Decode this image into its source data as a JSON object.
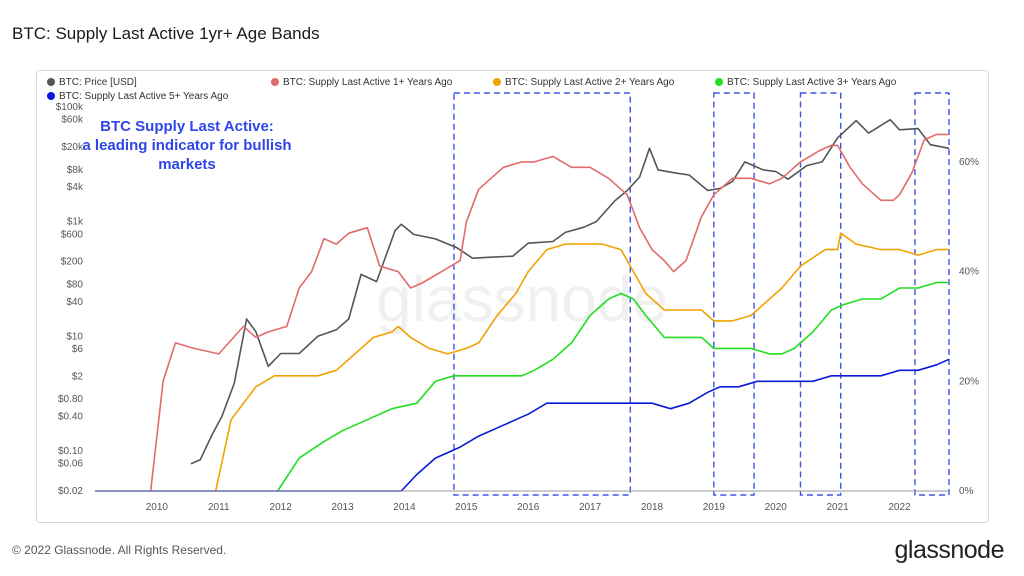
{
  "title": "BTC: Supply Last Active 1yr+ Age Bands",
  "footer": "© 2022 Glassnode. All Rights Reserved.",
  "brand": "glassnode",
  "watermark": "glassnode",
  "annotation": [
    "BTC Supply Last Active:",
    "a leading indicator for bullish",
    "markets"
  ],
  "chart_data": {
    "type": "line",
    "title": "BTC: Supply Last Active 1yr+ Age Bands",
    "xlim": [
      2009.0,
      2022.8
    ],
    "x_ticks": [
      "2010",
      "2011",
      "2012",
      "2013",
      "2014",
      "2015",
      "2016",
      "2017",
      "2018",
      "2019",
      "2020",
      "2021",
      "2022"
    ],
    "y_left": {
      "scale": "log",
      "ticks": [
        "$100k",
        "$60k",
        "$20k",
        "$8k",
        "$4k",
        "$1k",
        "$600",
        "$200",
        "$80",
        "$40",
        "$10",
        "$6",
        "$2",
        "$0.80",
        "$0.40",
        "$0.10",
        "$0.06",
        "$0.02"
      ],
      "tick_values": [
        100000,
        60000,
        20000,
        8000,
        4000,
        1000,
        600,
        200,
        80,
        40,
        10,
        6,
        2,
        0.8,
        0.4,
        0.1,
        0.06,
        0.02
      ],
      "ylim": [
        0.02,
        100000
      ]
    },
    "y_right": {
      "scale": "linear",
      "ticks": [
        "0%",
        "20%",
        "40%",
        "60%"
      ],
      "tick_values": [
        0,
        20,
        40,
        60
      ],
      "ylim": [
        0,
        70
      ]
    },
    "legend_placement": "top-left",
    "series": [
      {
        "name": "BTC: Price [USD]",
        "color": "#555555",
        "axis": "left",
        "points": [
          [
            2010.55,
            0.06
          ],
          [
            2010.7,
            0.07
          ],
          [
            2010.9,
            0.2
          ],
          [
            2011.05,
            0.4
          ],
          [
            2011.25,
            1.5
          ],
          [
            2011.45,
            20
          ],
          [
            2011.6,
            12
          ],
          [
            2011.8,
            3
          ],
          [
            2012.0,
            5
          ],
          [
            2012.3,
            5
          ],
          [
            2012.6,
            10
          ],
          [
            2012.9,
            13
          ],
          [
            2013.1,
            20
          ],
          [
            2013.3,
            120
          ],
          [
            2013.55,
            90
          ],
          [
            2013.85,
            700
          ],
          [
            2013.95,
            900
          ],
          [
            2014.15,
            600
          ],
          [
            2014.5,
            500
          ],
          [
            2014.85,
            350
          ],
          [
            2015.1,
            230
          ],
          [
            2015.4,
            240
          ],
          [
            2015.75,
            250
          ],
          [
            2016.0,
            420
          ],
          [
            2016.4,
            450
          ],
          [
            2016.6,
            650
          ],
          [
            2016.9,
            800
          ],
          [
            2017.1,
            1000
          ],
          [
            2017.4,
            2300
          ],
          [
            2017.6,
            3500
          ],
          [
            2017.8,
            6000
          ],
          [
            2017.96,
            19000
          ],
          [
            2018.1,
            8000
          ],
          [
            2018.4,
            7000
          ],
          [
            2018.6,
            6500
          ],
          [
            2018.9,
            3500
          ],
          [
            2019.1,
            3800
          ],
          [
            2019.3,
            5000
          ],
          [
            2019.5,
            11000
          ],
          [
            2019.8,
            8000
          ],
          [
            2020.0,
            7500
          ],
          [
            2020.2,
            5500
          ],
          [
            2020.5,
            9500
          ],
          [
            2020.75,
            11000
          ],
          [
            2021.0,
            29000
          ],
          [
            2021.3,
            58000
          ],
          [
            2021.5,
            35000
          ],
          [
            2021.85,
            60000
          ],
          [
            2022.0,
            40000
          ],
          [
            2022.3,
            42000
          ],
          [
            2022.5,
            22000
          ],
          [
            2022.8,
            19000
          ]
        ]
      },
      {
        "name": "BTC: Supply Last Active 1+ Years Ago",
        "color": "#e26b6b",
        "axis": "right",
        "points": [
          [
            2009.9,
            0
          ],
          [
            2010.1,
            20
          ],
          [
            2010.3,
            27
          ],
          [
            2010.6,
            26
          ],
          [
            2011.0,
            25
          ],
          [
            2011.4,
            30
          ],
          [
            2011.6,
            28
          ],
          [
            2011.8,
            29
          ],
          [
            2012.1,
            30
          ],
          [
            2012.3,
            37
          ],
          [
            2012.5,
            40
          ],
          [
            2012.7,
            46
          ],
          [
            2012.9,
            45
          ],
          [
            2013.1,
            47
          ],
          [
            2013.4,
            48
          ],
          [
            2013.6,
            41
          ],
          [
            2013.9,
            40
          ],
          [
            2014.1,
            37
          ],
          [
            2014.3,
            38
          ],
          [
            2014.6,
            40
          ],
          [
            2014.9,
            42
          ],
          [
            2015.0,
            49
          ],
          [
            2015.2,
            55
          ],
          [
            2015.6,
            59
          ],
          [
            2015.9,
            60
          ],
          [
            2016.1,
            60
          ],
          [
            2016.4,
            61
          ],
          [
            2016.7,
            59
          ],
          [
            2017.0,
            59
          ],
          [
            2017.3,
            57
          ],
          [
            2017.6,
            54
          ],
          [
            2017.8,
            48
          ],
          [
            2018.0,
            44
          ],
          [
            2018.2,
            42
          ],
          [
            2018.35,
            40
          ],
          [
            2018.55,
            42
          ],
          [
            2018.8,
            50
          ],
          [
            2019.0,
            54
          ],
          [
            2019.3,
            57
          ],
          [
            2019.6,
            57
          ],
          [
            2019.9,
            56
          ],
          [
            2020.1,
            57
          ],
          [
            2020.4,
            60
          ],
          [
            2020.7,
            62
          ],
          [
            2020.9,
            63
          ],
          [
            2021.0,
            63
          ],
          [
            2021.2,
            59
          ],
          [
            2021.4,
            56
          ],
          [
            2021.7,
            53
          ],
          [
            2021.9,
            53
          ],
          [
            2022.0,
            54
          ],
          [
            2022.2,
            58
          ],
          [
            2022.4,
            64
          ],
          [
            2022.6,
            65
          ],
          [
            2022.8,
            65
          ]
        ]
      },
      {
        "name": "BTC: Supply Last Active 2+ Years Ago",
        "color": "#f0a202",
        "axis": "right",
        "points": [
          [
            2010.95,
            0
          ],
          [
            2011.2,
            13
          ],
          [
            2011.6,
            19
          ],
          [
            2011.9,
            21
          ],
          [
            2012.3,
            21
          ],
          [
            2012.6,
            21
          ],
          [
            2012.9,
            22
          ],
          [
            2013.2,
            25
          ],
          [
            2013.5,
            28
          ],
          [
            2013.8,
            29
          ],
          [
            2013.9,
            30
          ],
          [
            2014.1,
            28
          ],
          [
            2014.4,
            26
          ],
          [
            2014.7,
            25
          ],
          [
            2015.0,
            26
          ],
          [
            2015.2,
            27
          ],
          [
            2015.5,
            32
          ],
          [
            2015.8,
            36
          ],
          [
            2016.0,
            40
          ],
          [
            2016.3,
            44
          ],
          [
            2016.6,
            45
          ],
          [
            2016.9,
            45
          ],
          [
            2017.2,
            45
          ],
          [
            2017.5,
            44
          ],
          [
            2017.7,
            40
          ],
          [
            2017.9,
            36
          ],
          [
            2018.2,
            33
          ],
          [
            2018.5,
            33
          ],
          [
            2018.8,
            33
          ],
          [
            2019.0,
            31
          ],
          [
            2019.3,
            31
          ],
          [
            2019.6,
            32
          ],
          [
            2019.9,
            35
          ],
          [
            2020.1,
            37
          ],
          [
            2020.4,
            41
          ],
          [
            2020.8,
            44
          ],
          [
            2021.0,
            44
          ],
          [
            2021.05,
            47
          ],
          [
            2021.3,
            45
          ],
          [
            2021.7,
            44
          ],
          [
            2022.0,
            44
          ],
          [
            2022.3,
            43
          ],
          [
            2022.6,
            44
          ],
          [
            2022.8,
            44
          ]
        ]
      },
      {
        "name": "BTC: Supply Last Active 3+ Years Ago",
        "color": "#22dd22",
        "axis": "right",
        "points": [
          [
            2011.95,
            0
          ],
          [
            2012.3,
            6
          ],
          [
            2012.7,
            9
          ],
          [
            2013.0,
            11
          ],
          [
            2013.4,
            13
          ],
          [
            2013.8,
            15
          ],
          [
            2014.2,
            16
          ],
          [
            2014.5,
            20
          ],
          [
            2014.8,
            21
          ],
          [
            2015.2,
            21
          ],
          [
            2015.6,
            21
          ],
          [
            2015.9,
            21
          ],
          [
            2016.1,
            22
          ],
          [
            2016.4,
            24
          ],
          [
            2016.7,
            27
          ],
          [
            2017.0,
            32
          ],
          [
            2017.3,
            35
          ],
          [
            2017.5,
            36
          ],
          [
            2017.7,
            35
          ],
          [
            2017.9,
            32
          ],
          [
            2018.2,
            28
          ],
          [
            2018.5,
            28
          ],
          [
            2018.8,
            28
          ],
          [
            2019.0,
            26
          ],
          [
            2019.3,
            26
          ],
          [
            2019.6,
            26
          ],
          [
            2019.9,
            25
          ],
          [
            2020.1,
            25
          ],
          [
            2020.3,
            26
          ],
          [
            2020.6,
            29
          ],
          [
            2020.9,
            33
          ],
          [
            2021.1,
            34
          ],
          [
            2021.4,
            35
          ],
          [
            2021.7,
            35
          ],
          [
            2022.0,
            37
          ],
          [
            2022.3,
            37
          ],
          [
            2022.6,
            38
          ],
          [
            2022.8,
            38
          ]
        ]
      },
      {
        "name": "BTC: Supply Last Active 5+ Years Ago",
        "color": "#0a1ad8",
        "axis": "right",
        "points": [
          [
            2009.0,
            0
          ],
          [
            2013.95,
            0
          ],
          [
            2014.2,
            3
          ],
          [
            2014.5,
            6
          ],
          [
            2014.9,
            8
          ],
          [
            2015.2,
            10
          ],
          [
            2015.6,
            12
          ],
          [
            2016.0,
            14
          ],
          [
            2016.3,
            16
          ],
          [
            2016.6,
            16
          ],
          [
            2016.9,
            16
          ],
          [
            2017.2,
            16
          ],
          [
            2017.5,
            16
          ],
          [
            2017.8,
            16
          ],
          [
            2018.0,
            16
          ],
          [
            2018.3,
            15
          ],
          [
            2018.6,
            16
          ],
          [
            2018.9,
            18
          ],
          [
            2019.1,
            19
          ],
          [
            2019.4,
            19
          ],
          [
            2019.7,
            20
          ],
          [
            2020.0,
            20
          ],
          [
            2020.3,
            20
          ],
          [
            2020.6,
            20
          ],
          [
            2020.9,
            21
          ],
          [
            2021.1,
            21
          ],
          [
            2021.4,
            21
          ],
          [
            2021.7,
            21
          ],
          [
            2022.0,
            22
          ],
          [
            2022.3,
            22
          ],
          [
            2022.6,
            23
          ],
          [
            2022.8,
            24
          ]
        ]
      }
    ],
    "highlight_boxes": [
      {
        "x_start": 2014.8,
        "x_end": 2017.65
      },
      {
        "x_start": 2019.0,
        "x_end": 2019.65
      },
      {
        "x_start": 2020.4,
        "x_end": 2021.05
      },
      {
        "x_start": 2022.25,
        "x_end": 2022.8
      }
    ]
  }
}
